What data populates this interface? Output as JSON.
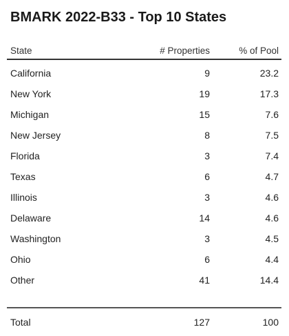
{
  "chart_data": {
    "type": "table",
    "title": "BMARK 2022-B33 - Top 10 States",
    "columns": [
      "State",
      "# Properties",
      "% of Pool"
    ],
    "rows": [
      {
        "state": "California",
        "properties": "9",
        "pct": "23.2"
      },
      {
        "state": "New York",
        "properties": "19",
        "pct": "17.3"
      },
      {
        "state": "Michigan",
        "properties": "15",
        "pct": "7.6"
      },
      {
        "state": "New Jersey",
        "properties": "8",
        "pct": "7.5"
      },
      {
        "state": "Florida",
        "properties": "3",
        "pct": "7.4"
      },
      {
        "state": "Texas",
        "properties": "6",
        "pct": "4.7"
      },
      {
        "state": "Illinois",
        "properties": "3",
        "pct": "4.6"
      },
      {
        "state": "Delaware",
        "properties": "14",
        "pct": "4.6"
      },
      {
        "state": "Washington",
        "properties": "3",
        "pct": "4.5"
      },
      {
        "state": "Ohio",
        "properties": "6",
        "pct": "4.4"
      },
      {
        "state": "Other",
        "properties": "41",
        "pct": "14.4"
      }
    ],
    "total": {
      "label": "Total",
      "properties": "127",
      "pct": "100"
    }
  }
}
